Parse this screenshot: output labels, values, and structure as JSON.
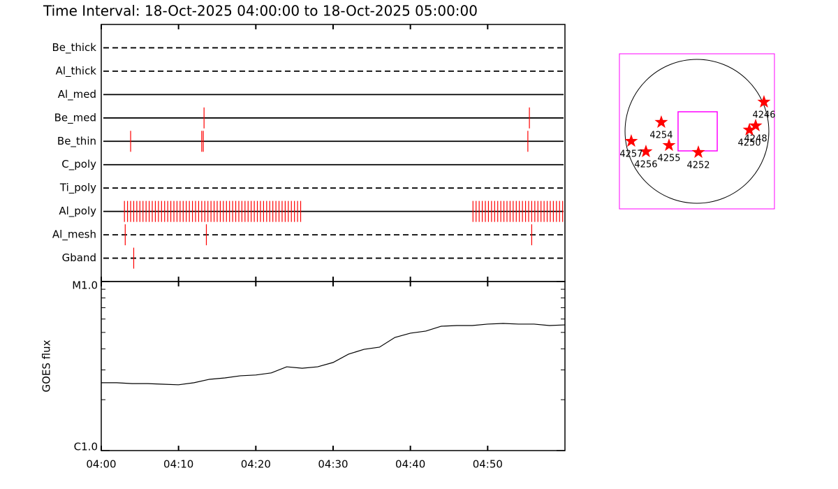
{
  "title": "Time Interval: 18-Oct-2025 04:00:00 to 18-Oct-2025 05:00:00",
  "chart_data": [
    {
      "type": "timeline",
      "categories": [
        "Be_thick",
        "Al_thick",
        "Al_med",
        "Be_med",
        "Be_thin",
        "C_poly",
        "Ti_poly",
        "Al_poly",
        "Al_mesh",
        "Gband"
      ],
      "linestyles": [
        "dashed",
        "dashed",
        "solid",
        "solid",
        "solid",
        "solid",
        "dashed",
        "solid",
        "dashed",
        "dashed"
      ],
      "events": [
        [],
        [],
        [],
        [
          13.3,
          55.4
        ],
        [
          3.8,
          13.0,
          13.2,
          55.2
        ],
        [],
        [],
        [
          3.0,
          3.4,
          3.8,
          4.2,
          4.6,
          5.0,
          5.4,
          5.8,
          6.2,
          6.6,
          7.0,
          7.4,
          7.8,
          8.2,
          8.6,
          9.0,
          9.4,
          9.8,
          10.2,
          10.6,
          11.0,
          11.4,
          11.8,
          12.2,
          12.6,
          13.0,
          13.4,
          13.8,
          14.2,
          14.6,
          15.0,
          15.4,
          15.8,
          16.2,
          16.6,
          17.0,
          17.4,
          17.8,
          18.2,
          18.6,
          19.0,
          19.4,
          19.8,
          20.2,
          20.6,
          21.0,
          21.4,
          21.8,
          22.2,
          22.6,
          23.0,
          23.4,
          23.8,
          24.2,
          24.6,
          25.0,
          25.4,
          25.8,
          48.1,
          48.5,
          48.9,
          49.3,
          49.7,
          50.1,
          50.5,
          50.9,
          51.3,
          51.7,
          52.1,
          52.5,
          52.9,
          53.3,
          53.7,
          54.1,
          54.5,
          54.9,
          55.3,
          55.7,
          56.1,
          56.5,
          56.9,
          57.3,
          57.7,
          58.1,
          58.5,
          58.9,
          59.3,
          59.7
        ],
        [
          3.1,
          13.6,
          55.7
        ],
        [
          4.2
        ]
      ],
      "color": "#ff0000",
      "xlim": [
        0,
        60
      ],
      "xticks": [
        0,
        10,
        20,
        30,
        40,
        50
      ]
    },
    {
      "type": "line",
      "ylabel": "GOES flux",
      "x": [
        0,
        2,
        4,
        6,
        8,
        10,
        12,
        14,
        16,
        18,
        20,
        22,
        24,
        26,
        28,
        30,
        32,
        34,
        36,
        38,
        40,
        42,
        44,
        46,
        48,
        50,
        52,
        54,
        56,
        58,
        60
      ],
      "values": [
        2.52e-06,
        2.52e-06,
        2.49e-06,
        2.49e-06,
        2.47e-06,
        2.45e-06,
        2.52e-06,
        2.64e-06,
        2.69e-06,
        2.77e-06,
        2.8e-06,
        2.88e-06,
        3.13e-06,
        3.07e-06,
        3.13e-06,
        3.32e-06,
        3.72e-06,
        3.97e-06,
        4.09e-06,
        4.67e-06,
        4.95e-06,
        5.09e-06,
        5.44e-06,
        5.49e-06,
        5.49e-06,
        5.6e-06,
        5.65e-06,
        5.6e-06,
        5.6e-06,
        5.49e-06,
        5.54e-06
      ],
      "color": "#000000",
      "log": true,
      "xlim": [
        0,
        60
      ],
      "xticks": [
        {
          "value": 0,
          "label": "04:00"
        },
        {
          "value": 10,
          "label": "04:10"
        },
        {
          "value": 20,
          "label": "04:20"
        },
        {
          "value": 30,
          "label": "04:30"
        },
        {
          "value": 40,
          "label": "04:40"
        },
        {
          "value": 50,
          "label": "04:50"
        }
      ],
      "ylim": [
        1e-06,
        1e-05
      ],
      "yticks": [
        {
          "value": 1e-06,
          "label": "C1.0"
        },
        {
          "value": 1e-05,
          "label": "M1.0"
        }
      ],
      "yminor": [
        2e-06,
        3e-06,
        4e-06,
        5e-06,
        6e-06,
        7e-06,
        8e-06,
        9e-06
      ]
    },
    {
      "type": "scatter",
      "x": [
        895,
        784,
        700,
        -476,
        -373,
        19,
        -681,
        -877
      ],
      "y": [
        392,
        75,
        19,
        121,
        -187,
        -280,
        -270,
        -131
      ],
      "labels": [
        "4246",
        "4248",
        "4250",
        "4254",
        "4255",
        "4252",
        "4256",
        "4257"
      ],
      "color": "#ff0000",
      "frame_color": "#ff00ff",
      "xlim": [
        -1035,
        1035
      ],
      "ylim": [
        -1035,
        1035
      ],
      "disk_radius": 960,
      "fov_x": [
        -252,
        271
      ],
      "fov_y": [
        -261,
        261
      ]
    }
  ]
}
